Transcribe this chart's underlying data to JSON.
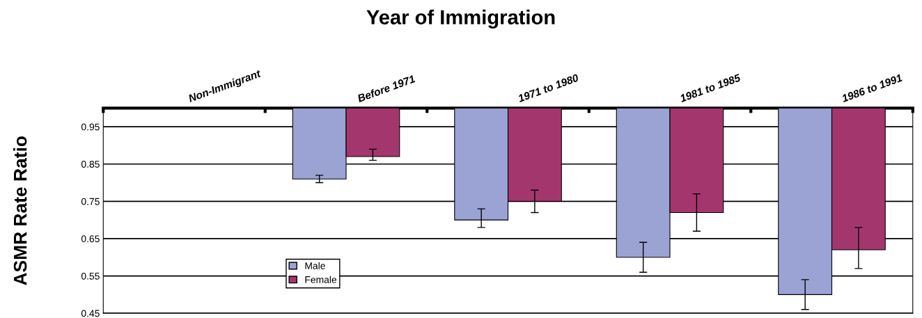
{
  "chart_data": {
    "type": "bar",
    "title": "Year of Immigration",
    "ylabel": "ASMR Rate Ratio",
    "categories": [
      "Non-Immigrant",
      "Before 1971",
      "1971 to 1980",
      "1981 to 1985",
      "1986 to 1991"
    ],
    "series": [
      {
        "name": "Male",
        "color": "#9ba3d4",
        "base": [
          null,
          1,
          1,
          1,
          1
        ],
        "values": [
          null,
          -0.19,
          -0.3,
          -0.4,
          -0.5
        ],
        "errors": [
          null,
          0.01,
          [
            0.68,
            0.73
          ],
          0.04,
          0.04
        ]
      },
      {
        "name": "Female",
        "color": "#a4366e",
        "base": [
          null,
          1,
          1,
          1,
          1
        ],
        "values": [
          null,
          -0.13,
          -0.25,
          -0.28,
          -0.38
        ],
        "errors": [
          null,
          [
            0.86,
            0.89
          ],
          0.03,
          0.05,
          [
            0.57,
            0.68
          ]
        ]
      }
    ],
    "ylim": [
      0.45,
      1.0
    ],
    "yticks": [
      0.45,
      0.55,
      0.65,
      0.75,
      0.85,
      0.95
    ],
    "grid": "y",
    "legend": "bottom left"
  }
}
